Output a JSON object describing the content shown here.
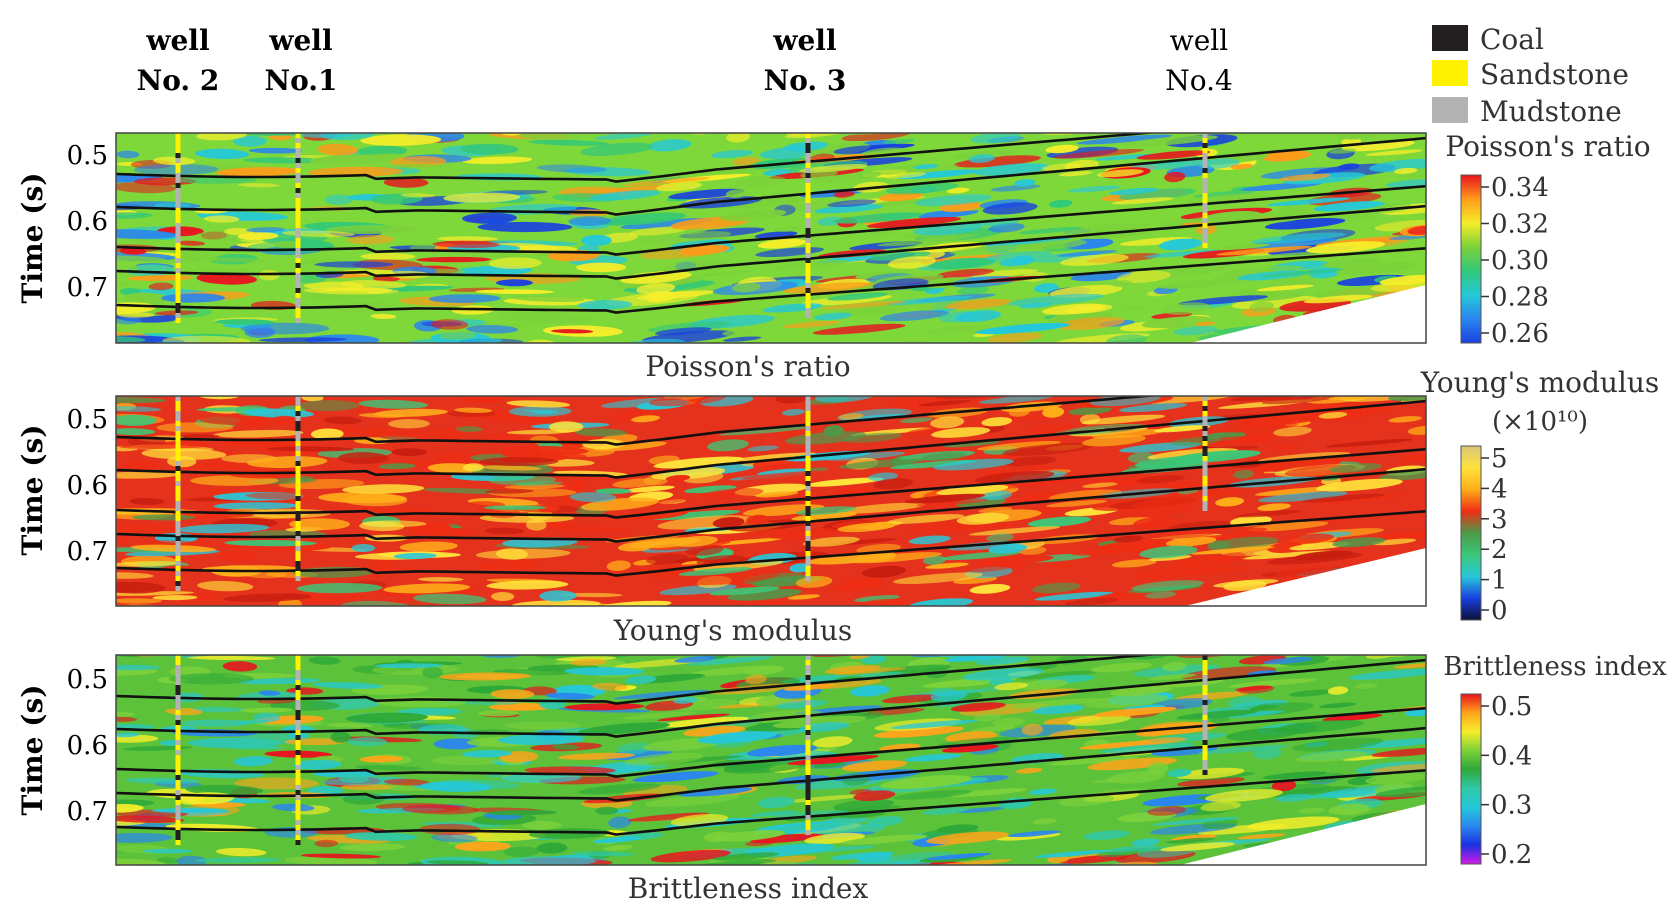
{
  "wells": [
    {
      "top": "well",
      "bottom": "No. 2",
      "bold": true
    },
    {
      "top": "well",
      "bottom": "No.1",
      "bold": true
    },
    {
      "top": "well",
      "bottom": "No. 3",
      "bold": true
    },
    {
      "top": "well",
      "bottom": "No.4",
      "bold": false
    }
  ],
  "legend": [
    {
      "label": "Coal",
      "color": "#231f20"
    },
    {
      "label": "Sandstone",
      "color": "#fff200"
    },
    {
      "label": "Mudstone",
      "color": "#b3b3b3"
    }
  ],
  "panels": [
    {
      "caption": "Poisson's ratio",
      "y_label": "Time (s)",
      "y_ticks": [
        "0.5",
        "0.6",
        "0.7"
      ],
      "colorbar_title": "Poisson's ratio",
      "colorbar_subtitle": "",
      "colorbar_ticks": [
        "0.34",
        "0.32",
        "0.30",
        "0.28",
        "0.26"
      ],
      "colormap": [
        "#e8141e",
        "#ff9a1a",
        "#f5ee2a",
        "#7cd13a",
        "#32c878",
        "#25c8d8",
        "#2a86ee",
        "#1a40e0"
      ],
      "background": "#7fd83a"
    },
    {
      "caption": "Young's modulus",
      "y_label": "Time (s)",
      "y_ticks": [
        "0.5",
        "0.6",
        "0.7"
      ],
      "colorbar_title": "Young's modulus",
      "colorbar_subtitle": "(×10¹⁰)",
      "colorbar_ticks": [
        "5",
        "4",
        "3",
        "2",
        "1",
        "0"
      ],
      "colormap": [
        "#d9c57a",
        "#ffe23a",
        "#ffae1a",
        "#ee2d14",
        "#4d9a4a",
        "#3ac878",
        "#28c8d8",
        "#1a40e0",
        "#0a1038"
      ],
      "background": "#e5321c"
    },
    {
      "caption": "Brittleness index",
      "y_label": "Time (s)",
      "y_ticks": [
        "0.5",
        "0.6",
        "0.7"
      ],
      "colorbar_title": "Brittleness index",
      "colorbar_subtitle": "",
      "colorbar_ticks": [
        "0.5",
        "0.4",
        "0.3",
        "0.2"
      ],
      "colormap": [
        "#e8141e",
        "#ffa41a",
        "#f5ee2a",
        "#7cd13a",
        "#2ea838",
        "#30c8a8",
        "#25c8d8",
        "#2a86ee",
        "#1a30e0",
        "#d41ae8"
      ],
      "background": "#5cc23a"
    }
  ]
}
